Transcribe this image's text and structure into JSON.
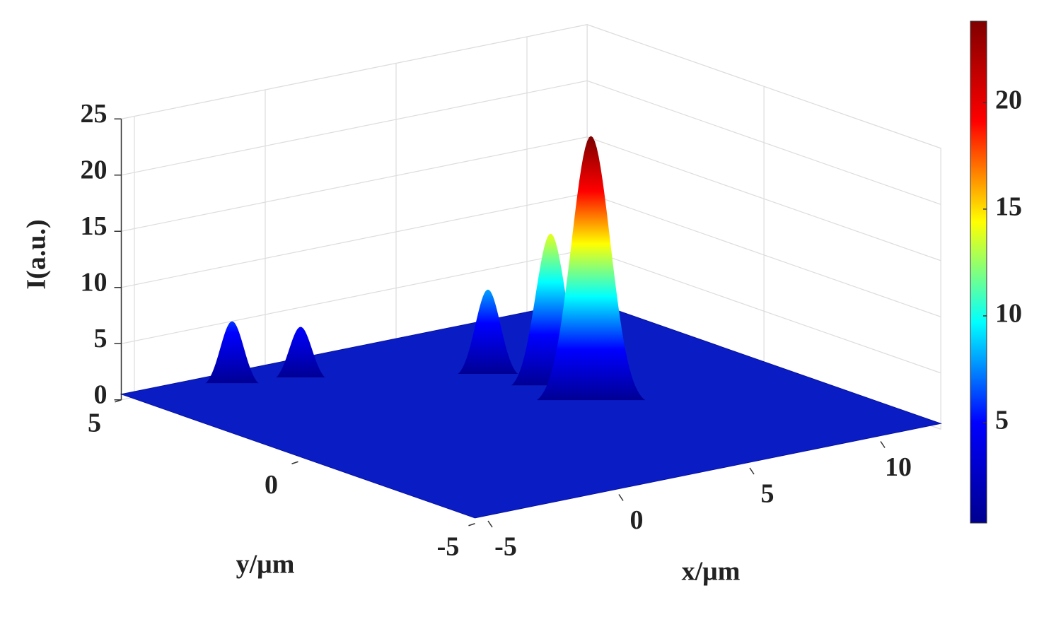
{
  "chart_data": {
    "type": "surface",
    "zlabel": "I(a.u.)",
    "xlabel": "x/μm",
    "ylabel": "y/μm",
    "xlim": [
      -5.5,
      12.3
    ],
    "xticks": [
      -5,
      0,
      5,
      10
    ],
    "ylim": [
      -5,
      5
    ],
    "yticks": [
      -5,
      0,
      5
    ],
    "zlim": [
      0,
      25
    ],
    "zticks": [
      0,
      5,
      10,
      15,
      20,
      25
    ],
    "floor": 0.5,
    "peaks": [
      {
        "x": 0,
        "y": 4.0,
        "z": 5
      },
      {
        "x": -2.05,
        "y": 4.42,
        "z": 6
      },
      {
        "x": 5.5,
        "y": 1.0,
        "z": 14
      },
      {
        "x": 4.78,
        "y": 2.24,
        "z": 8
      },
      {
        "x": 5.46,
        "y": -0.17,
        "z": 24
      }
    ],
    "clim": [
      0.3,
      23.8
    ],
    "cticks": [
      5,
      10,
      15,
      20
    ],
    "colormap": [
      "#00008f",
      "#0000ff",
      "#00ffff",
      "#ffff00",
      "#ff0000",
      "#800000"
    ],
    "grid": true
  }
}
